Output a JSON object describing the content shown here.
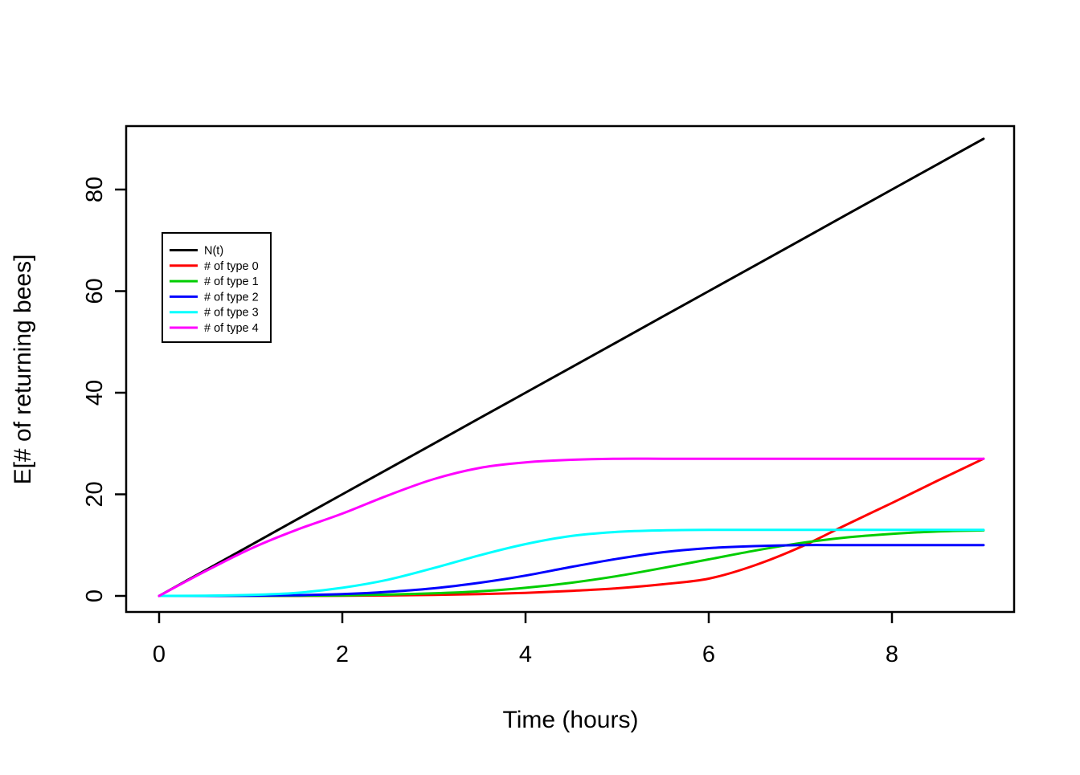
{
  "chart_data": {
    "type": "line",
    "title": "",
    "xlabel": "Time (hours)",
    "ylabel": "E[# of returning bees]",
    "xlim": [
      0,
      9
    ],
    "ylim": [
      0,
      90
    ],
    "x_ticks": [
      0,
      2,
      4,
      6,
      8
    ],
    "y_ticks": [
      0,
      20,
      40,
      60,
      80
    ],
    "grid": false,
    "legend_position": "upper-left-inside",
    "axis_color": "#000000",
    "background_color": "#ffffff",
    "x": [
      0,
      0.5,
      1,
      1.5,
      2,
      2.5,
      3,
      3.5,
      4,
      4.5,
      5,
      5.5,
      6,
      6.5,
      7,
      7.5,
      8,
      8.5,
      9
    ],
    "series": [
      {
        "name": "N(t)",
        "color": "#000000",
        "values": [
          0,
          5,
          10,
          15,
          20,
          25,
          30,
          35,
          40,
          45,
          50,
          55,
          60,
          65,
          70,
          75,
          80,
          85,
          90
        ]
      },
      {
        "name": "# of type 0",
        "color": "#ff0000",
        "values": [
          0,
          0,
          0,
          0,
          0.05,
          0.1,
          0.2,
          0.35,
          0.6,
          1.0,
          1.5,
          2.3,
          3.4,
          6.0,
          9.6,
          14.0,
          18.3,
          22.7,
          27.0
        ]
      },
      {
        "name": "# of type 1",
        "color": "#00cd00",
        "values": [
          0,
          0,
          0,
          0.05,
          0.1,
          0.25,
          0.5,
          0.9,
          1.6,
          2.6,
          3.9,
          5.5,
          7.2,
          8.9,
          10.4,
          11.5,
          12.2,
          12.7,
          12.9
        ]
      },
      {
        "name": "# of type 2",
        "color": "#0000ff",
        "values": [
          0,
          0,
          0.05,
          0.15,
          0.35,
          0.8,
          1.5,
          2.6,
          4.0,
          5.7,
          7.3,
          8.6,
          9.4,
          9.8,
          10.0,
          10.0,
          10.0,
          10.0,
          10.0
        ]
      },
      {
        "name": "# of type 3",
        "color": "#00ffff",
        "values": [
          0,
          0.05,
          0.2,
          0.6,
          1.6,
          3.2,
          5.5,
          8.0,
          10.2,
          11.8,
          12.6,
          12.9,
          13.0,
          13.0,
          13.0,
          13.0,
          13.0,
          13.0,
          13.0
        ]
      },
      {
        "name": "# of type 4",
        "color": "#ff00ff",
        "values": [
          0,
          4.8,
          9.3,
          13.0,
          16.2,
          19.8,
          23.0,
          25.2,
          26.3,
          26.8,
          27.0,
          27.0,
          27.0,
          27.0,
          27.0,
          27.0,
          27.0,
          27.0,
          27.0
        ]
      }
    ]
  }
}
